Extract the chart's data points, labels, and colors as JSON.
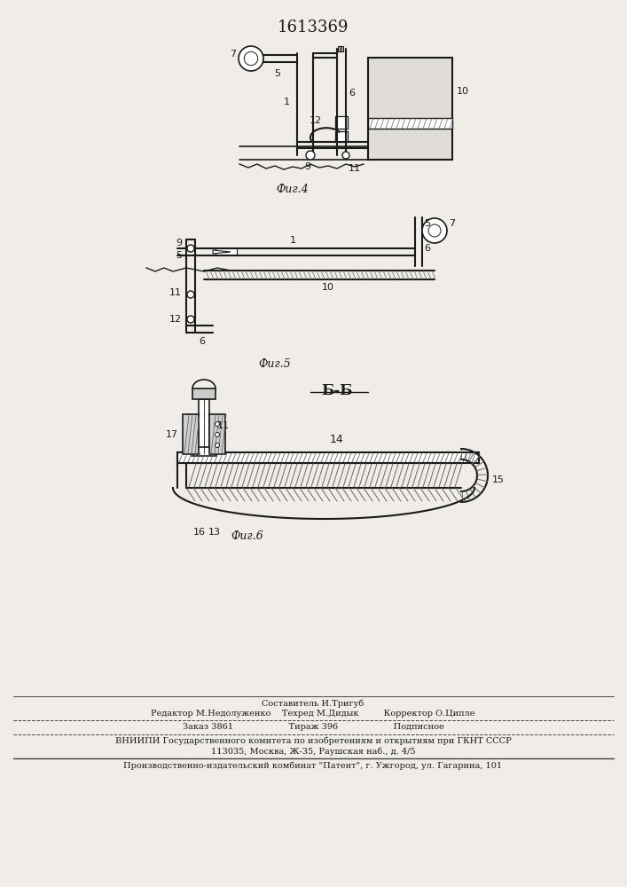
{
  "patent_number": "1613369",
  "background_color": "#f0ede8",
  "line_color": "#1a1a1a",
  "fig4_label": "Фиг.4",
  "fig5_label": "Фиг.5",
  "fig6_label": "Фиг.6",
  "section_label": "Б-Б",
  "footer_lines": [
    "Составитель И.Тригуб",
    "Редактор М.Недолуженко    Техред М.Дидык         Корректор О.Ципле",
    "Заказ 3861                    Тираж 396                    Подписное",
    "ВНИИПИ Государственного комитета по изобретениям и открытиям при ГКНТ СССР",
    "113035, Москва, Ж-35, Раушская наб., д. 4/5",
    "Производственно-издательский комбинат \"Патент\", г. Ужгород, ул. Гагарина, 101"
  ]
}
